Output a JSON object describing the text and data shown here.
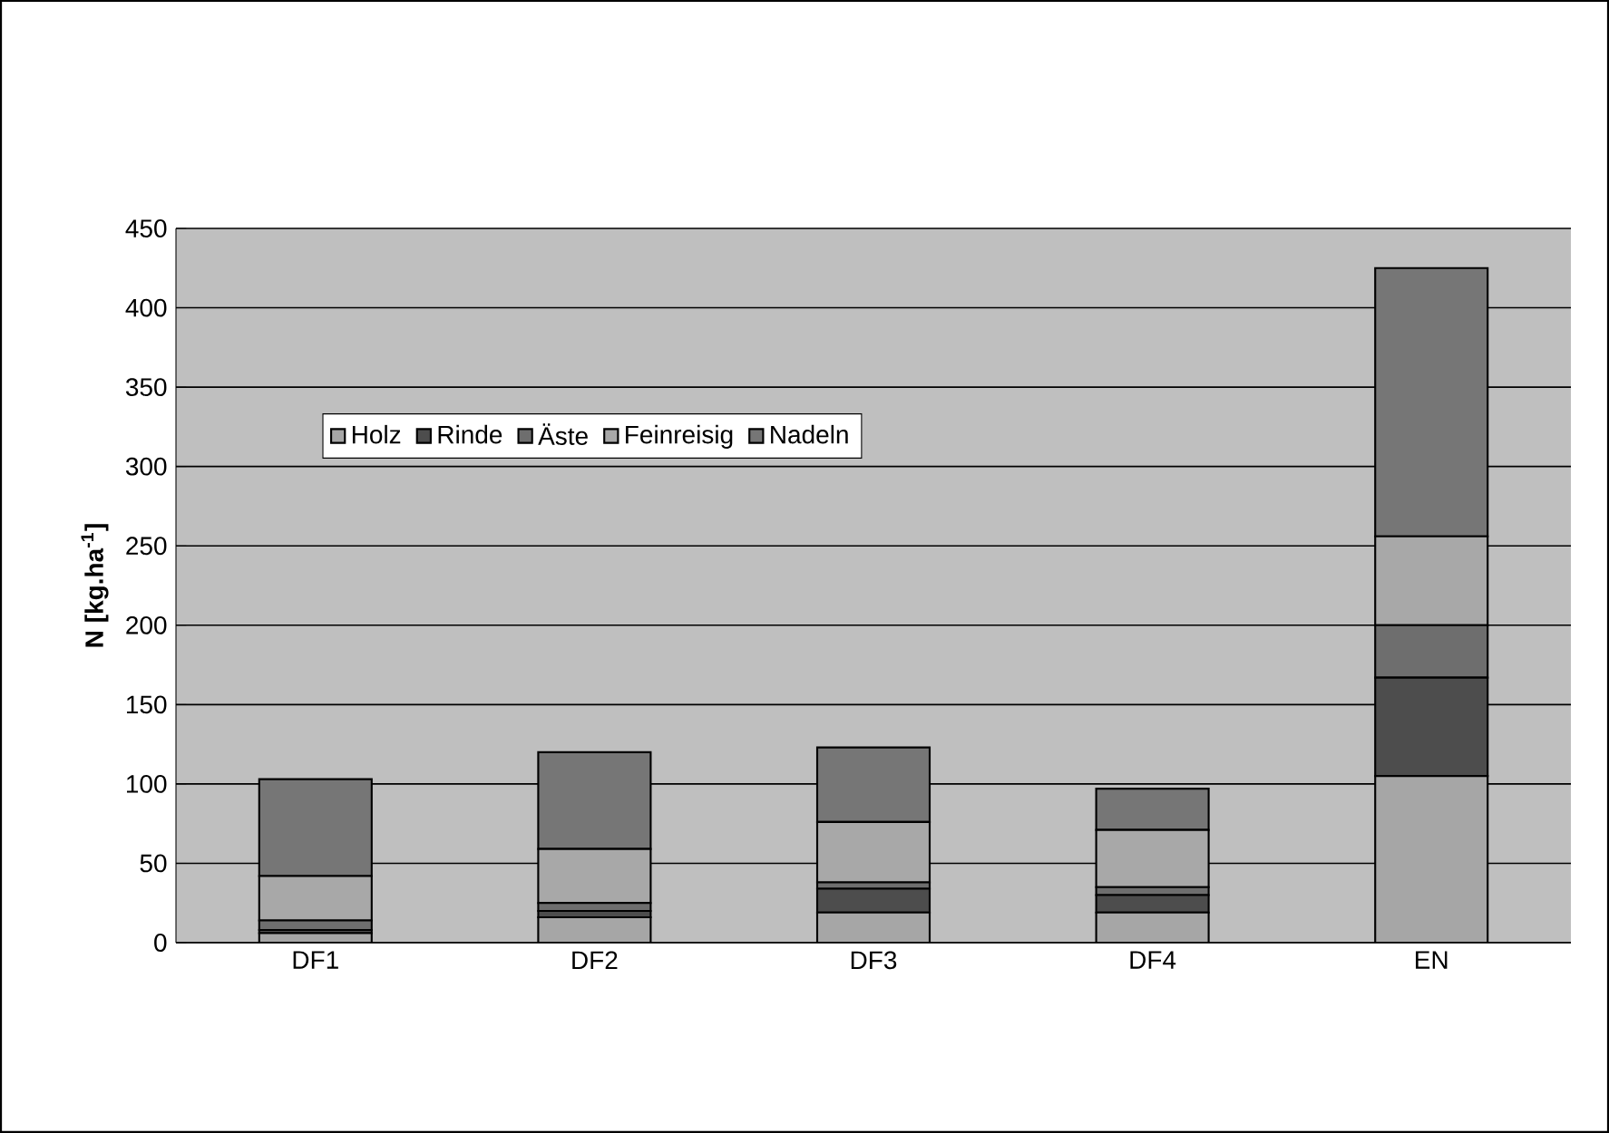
{
  "chart_data": {
    "type": "bar",
    "stacked": true,
    "ylabel": "N [kg.ha$^{-1}$]",
    "categories": [
      "DF1",
      "DF2",
      "DF3",
      "DF4",
      "EN"
    ],
    "series": [
      {
        "name": "Holz",
        "color": "#a6a6a6",
        "values": [
          6,
          16,
          19,
          19,
          105
        ]
      },
      {
        "name": "Rinde",
        "color": "#4d4d4d",
        "values": [
          2,
          4,
          15,
          11,
          62
        ]
      },
      {
        "name": "Äste",
        "color": "#6e6e6e",
        "values": [
          6,
          5,
          4,
          5,
          33
        ]
      },
      {
        "name": "Feinreisig",
        "color": "#a8a8a8",
        "values": [
          28,
          34,
          38,
          36,
          56
        ]
      },
      {
        "name": "Nadeln",
        "color": "#767676",
        "values": [
          61,
          61,
          47,
          26,
          169
        ]
      }
    ],
    "ylim": [
      0,
      450
    ],
    "yticks": [
      0,
      50,
      100,
      150,
      200,
      250,
      300,
      350,
      400,
      450
    ],
    "grid": "y",
    "legend": "top left"
  }
}
